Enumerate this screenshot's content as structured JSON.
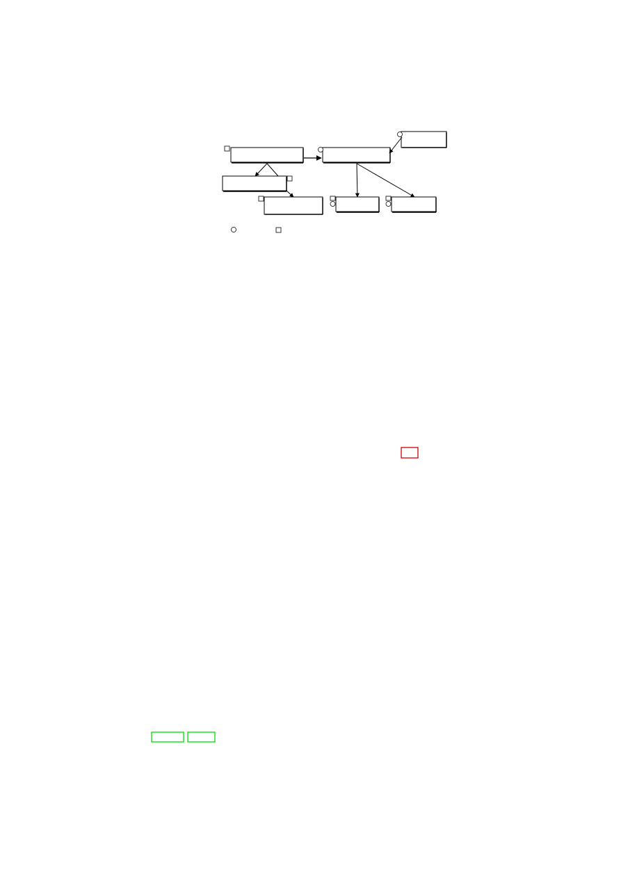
{
  "page": {
    "background": "#ffffff"
  },
  "diagram": {
    "nodes": [
      {
        "id": "n1",
        "marker": "square",
        "label": ""
      },
      {
        "id": "n2",
        "marker": "circle",
        "label": ""
      },
      {
        "id": "n3",
        "marker": "circle",
        "label": ""
      },
      {
        "id": "n4",
        "marker": "square",
        "label": ""
      },
      {
        "id": "n5",
        "marker": "square",
        "label": ""
      },
      {
        "id": "n6",
        "marker": "square-circle",
        "label": ""
      },
      {
        "id": "n7",
        "marker": "square-circle",
        "label": ""
      }
    ],
    "edges": [
      {
        "from": "n1",
        "to": "n2"
      },
      {
        "from": "n3",
        "to": "n2"
      },
      {
        "from": "n1",
        "to": "n4"
      },
      {
        "from": "n1",
        "to": "n5"
      },
      {
        "from": "n2",
        "to": "n6"
      },
      {
        "from": "n2",
        "to": "n7"
      }
    ],
    "legend": [
      {
        "symbol": "circle",
        "label": ""
      },
      {
        "symbol": "square",
        "label": ""
      }
    ]
  },
  "annotations": {
    "red_box_color": "#cc0000",
    "green_box_color": "#00dd00"
  }
}
